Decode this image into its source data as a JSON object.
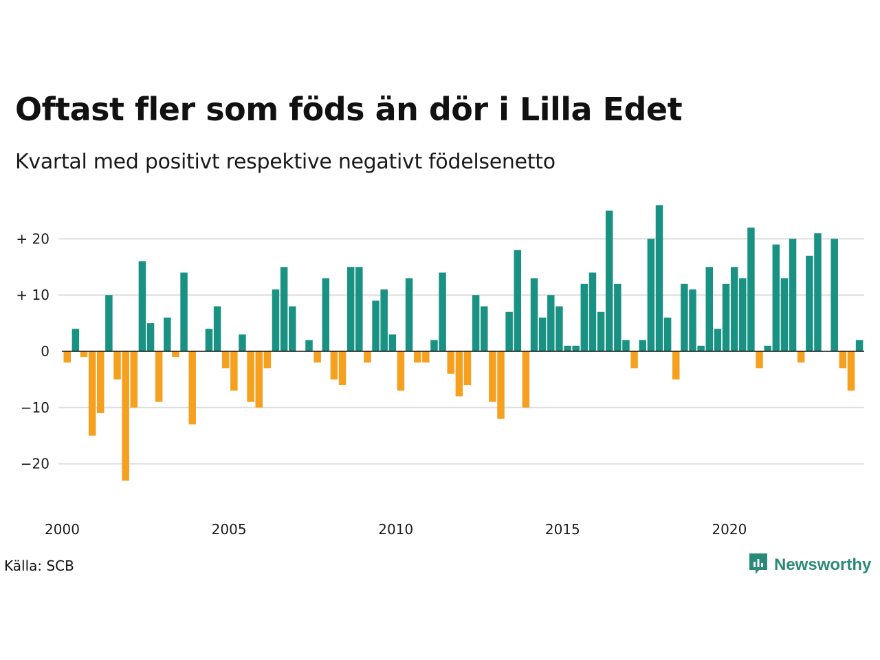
{
  "title": "Oftast fler som föds än dör i Lilla Edet",
  "subtitle": "Kvartal med positivt respektive negativt födelsenetto",
  "source": "Källa: SCB",
  "brand": {
    "name": "Newsworthy",
    "icon": "newsworthy-logo-icon"
  },
  "colors": {
    "positive": "#1a9283",
    "negative": "#f5a01f",
    "grid": "#dddddd",
    "brand": "#2a8a78"
  },
  "chart_data": {
    "type": "bar",
    "title": "Oftast fler som föds än dör i Lilla Edet",
    "subtitle": "Kvartal med positivt respektive negativt födelsenetto",
    "x_start": 2000,
    "x_ticks": [
      "2000",
      "2005",
      "2010",
      "2015",
      "2020"
    ],
    "y_ticks": [
      {
        "value": 20,
        "label": "+ 20"
      },
      {
        "value": 10,
        "label": "+ 10"
      },
      {
        "value": 0,
        "label": "0"
      },
      {
        "value": -10,
        "label": "−10"
      },
      {
        "value": -20,
        "label": "−20"
      }
    ],
    "ylim": [
      -28,
      27
    ],
    "grid": true,
    "values": [
      -2,
      4,
      -1,
      -15,
      -11,
      10,
      -5,
      -23,
      -10,
      16,
      5,
      -9,
      6,
      -1,
      14,
      -13,
      0,
      4,
      8,
      -3,
      -7,
      3,
      -9,
      -10,
      -3,
      11,
      15,
      8,
      0,
      2,
      -2,
      13,
      -5,
      -6,
      15,
      15,
      -2,
      9,
      11,
      3,
      -7,
      13,
      -2,
      -2,
      2,
      14,
      -4,
      -8,
      -6,
      10,
      8,
      -9,
      -12,
      7,
      18,
      -10,
      13,
      6,
      10,
      8,
      1,
      1,
      12,
      14,
      7,
      25,
      12,
      2,
      -3,
      2,
      20,
      26,
      6,
      -5,
      12,
      11,
      1,
      15,
      4,
      12,
      15,
      13,
      22,
      -3,
      1,
      19,
      13,
      20,
      -2,
      17,
      21,
      0,
      20,
      -3,
      -7,
      2
    ]
  }
}
